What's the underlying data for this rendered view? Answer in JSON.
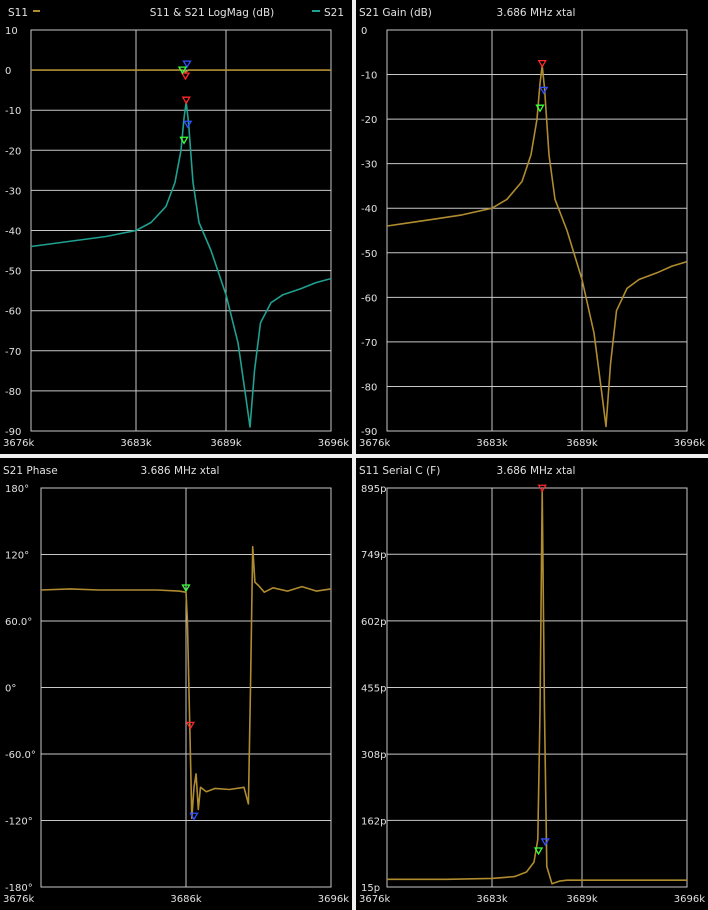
{
  "colors": {
    "background": "#000000",
    "grid": "#c8c8c8",
    "text": "#e0e0e0",
    "trace_s11": "#b08c30",
    "trace_s21": "#1fa090",
    "marker_red": "#ff2a2a",
    "marker_green": "#3aff3a",
    "marker_blue": "#3050ff"
  },
  "chart_data": [
    {
      "type": "line",
      "title": "S11 & S21 LogMag (dB)",
      "legend": [
        {
          "label": "S11",
          "color": "#b08c30",
          "position": "top-left"
        },
        {
          "label": "S21",
          "color": "#1fa090",
          "position": "top-right"
        }
      ],
      "xlim": [
        3676,
        3696
      ],
      "ylim": [
        -90,
        10
      ],
      "xticks": [
        3676,
        3683,
        3689,
        3696
      ],
      "xtick_labels": [
        "3676k",
        "3683k",
        "3689k",
        "3696k"
      ],
      "yticks": [
        10,
        0,
        -10,
        -20,
        -30,
        -40,
        -50,
        -60,
        -70,
        -80,
        -90
      ],
      "ytick_labels": [
        "10",
        "0",
        "-10",
        "-20",
        "-30",
        "-40",
        "-50",
        "-60",
        "-70",
        "-80",
        "-90"
      ],
      "series": [
        {
          "name": "S11",
          "color": "#b08c30",
          "x": [
            3676,
            3680,
            3684,
            3686.1,
            3686.3,
            3686.5,
            3690,
            3696
          ],
          "y": [
            0,
            0,
            0,
            0,
            -0.5,
            0,
            0,
            0
          ]
        },
        {
          "name": "S21",
          "color": "#1fa090",
          "x": [
            3676,
            3677,
            3679,
            3681,
            3683,
            3684,
            3685,
            3685.6,
            3686,
            3686.2,
            3686.35,
            3686.5,
            3686.8,
            3687.2,
            3688,
            3689,
            3689.8,
            3690.3,
            3690.6,
            3690.9,
            3691.3,
            3692,
            3692.8,
            3694,
            3695,
            3696
          ],
          "y": [
            -44,
            -43.5,
            -42.5,
            -41.5,
            -40,
            -38,
            -34,
            -28,
            -20,
            -12,
            -8,
            -13,
            -28,
            -38,
            -45,
            -56,
            -68,
            -81,
            -89,
            -75,
            -63,
            -58,
            -56,
            -54.5,
            -53,
            -52
          ]
        }
      ],
      "markers": [
        {
          "trace": "S21",
          "x": 3686.35,
          "y": -8,
          "color": "#ff2a2a"
        },
        {
          "trace": "S21",
          "x": 3686.45,
          "y": -14,
          "color": "#3050ff"
        },
        {
          "trace": "S21",
          "x": 3686.2,
          "y": -18,
          "color": "#3aff3a"
        },
        {
          "trace": "S11",
          "x": 3686.4,
          "y": 1,
          "color": "#3050ff"
        },
        {
          "trace": "S11",
          "x": 3686.3,
          "y": -2,
          "color": "#ff2a2a"
        },
        {
          "trace": "S11",
          "x": 3686.1,
          "y": -0.5,
          "color": "#3aff3a"
        }
      ]
    },
    {
      "type": "line",
      "title": "S21 Gain (dB)",
      "subtitle": "3.686 MHz xtal",
      "xlim": [
        3676,
        3696
      ],
      "ylim": [
        -90,
        0
      ],
      "xticks": [
        3676,
        3683,
        3689,
        3696
      ],
      "xtick_labels": [
        "3676k",
        "3683k",
        "3689k",
        "3696k"
      ],
      "yticks": [
        0,
        -10,
        -20,
        -30,
        -40,
        -50,
        -60,
        -70,
        -80,
        -90
      ],
      "ytick_labels": [
        "0",
        "-10",
        "-20",
        "-30",
        "-40",
        "-50",
        "-60",
        "-70",
        "-80",
        "-90"
      ],
      "series": [
        {
          "color": "#b08c30",
          "x": [
            3676,
            3677,
            3679,
            3681,
            3683,
            3684,
            3685,
            3685.6,
            3686,
            3686.2,
            3686.35,
            3686.5,
            3686.8,
            3687.2,
            3688,
            3689,
            3689.8,
            3690.3,
            3690.6,
            3690.9,
            3691.3,
            3692,
            3692.8,
            3694,
            3695,
            3696
          ],
          "y": [
            -44,
            -43.5,
            -42.5,
            -41.5,
            -40,
            -38,
            -34,
            -28,
            -20,
            -12,
            -8,
            -13,
            -28,
            -38,
            -45,
            -56,
            -68,
            -81,
            -89,
            -75,
            -63,
            -58,
            -56,
            -54.5,
            -53,
            -52
          ]
        }
      ],
      "markers": [
        {
          "x": 3686.35,
          "y": -8,
          "color": "#ff2a2a"
        },
        {
          "x": 3686.45,
          "y": -14,
          "color": "#3050ff"
        },
        {
          "x": 3686.2,
          "y": -18,
          "color": "#3aff3a"
        }
      ]
    },
    {
      "type": "line",
      "title": "S21 Phase",
      "subtitle": "3.686 MHz xtal",
      "xlim": [
        3676,
        3696
      ],
      "ylim": [
        -180,
        180
      ],
      "xticks": [
        3676,
        3686,
        3696
      ],
      "xtick_labels": [
        "3676k",
        "3686k",
        "3696k"
      ],
      "yticks": [
        180,
        120,
        60,
        0,
        -60,
        -120,
        -180
      ],
      "ytick_labels": [
        "180°",
        "120°",
        "60.0°",
        "0°",
        "-60.0°",
        "-120°",
        "-180°"
      ],
      "series": [
        {
          "color": "#b08c30",
          "x": [
            3676,
            3678,
            3680,
            3682,
            3684,
            3685.5,
            3686,
            3686.1,
            3686.2,
            3686.3,
            3686.4,
            3686.55,
            3686.7,
            3686.85,
            3687,
            3687.4,
            3688,
            3689,
            3690,
            3690.3,
            3690.45,
            3690.6,
            3690.75,
            3691,
            3691.4,
            3692,
            3693,
            3694,
            3695,
            3696
          ],
          "y": [
            88,
            89,
            88,
            88,
            88,
            87,
            86,
            60,
            0,
            -60,
            -118,
            -90,
            -78,
            -110,
            -90,
            -94,
            -91,
            -92,
            -90,
            -105,
            0,
            127,
            95,
            92,
            86,
            90,
            87,
            91,
            87,
            89
          ]
        }
      ],
      "markers": [
        {
          "x": 3686,
          "y": 88,
          "color": "#3aff3a"
        },
        {
          "x": 3686.3,
          "y": -36,
          "color": "#ff2a2a"
        },
        {
          "x": 3686.55,
          "y": -118,
          "color": "#3050ff"
        }
      ]
    },
    {
      "type": "line",
      "title": "S11 Serial C (F)",
      "subtitle": "3.686 MHz xtal",
      "xlim": [
        3676,
        3696
      ],
      "ylim": [
        15,
        895
      ],
      "xticks": [
        3676,
        3683,
        3689,
        3696
      ],
      "xtick_labels": [
        "3676k",
        "3683k",
        "3689k",
        "3696k"
      ],
      "yticks": [
        895,
        749,
        602,
        455,
        308,
        162,
        15
      ],
      "ytick_labels": [
        "895p",
        "749p",
        "602p",
        "455p",
        "308p",
        "162p",
        "15p"
      ],
      "series": [
        {
          "color": "#b08c30",
          "x": [
            3676,
            3680,
            3683,
            3684.5,
            3685.3,
            3685.8,
            3686.05,
            3686.2,
            3686.35,
            3686.5,
            3686.65,
            3687,
            3687.5,
            3688,
            3692,
            3696
          ],
          "y": [
            32,
            32,
            34,
            38,
            48,
            70,
            120,
            400,
            890,
            400,
            60,
            22,
            28,
            30,
            30,
            30
          ]
        }
      ],
      "markers": [
        {
          "x": 3686.35,
          "y": 890,
          "color": "#ff2a2a"
        },
        {
          "x": 3686.55,
          "y": 110,
          "color": "#3050ff"
        },
        {
          "x": 3686.1,
          "y": 90,
          "color": "#3aff3a"
        }
      ]
    }
  ]
}
